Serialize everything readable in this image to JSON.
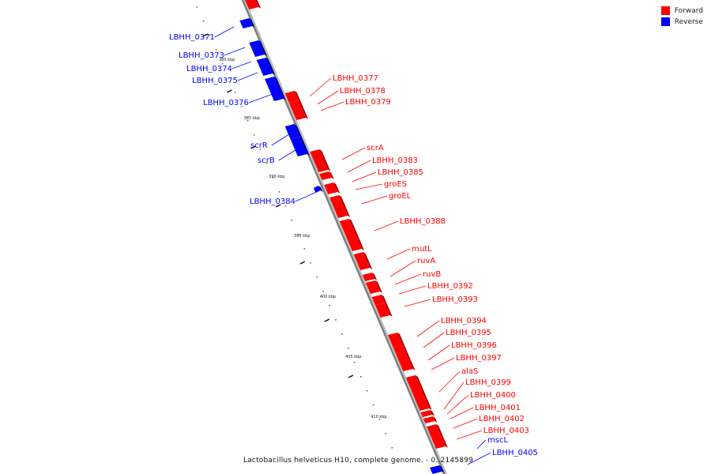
{
  "legend": {
    "forward_label": "Forward",
    "reverse_label": "Reverse",
    "forward_color": "#ff0000",
    "reverse_color": "#0000ff"
  },
  "caption": "Lactobacillus helveticus H10, complete genome. - 0..2145899",
  "ticks": [
    "380 kbp",
    "385 kbp",
    "390 kbp",
    "395 kbp",
    "400 kbp",
    "405 kbp",
    "410 kbp"
  ],
  "reverse_genes": [
    "LBHH_0371",
    "LBHH_0373",
    "LBHH_0374",
    "LBHH_0375",
    "LBHH_0376",
    "scrR",
    "scrB",
    "LBHH_0384",
    "mscL",
    "LBHH_0405"
  ],
  "forward_genes": [
    "LBHH_0377",
    "LBHH_0378",
    "LBHH_0379",
    "scrA",
    "LBHH_0383",
    "LBHH_0385",
    "groES",
    "groEL",
    "LBHH_0388",
    "mutL",
    "ruvA",
    "ruvB",
    "LBHH_0392",
    "LBHH_0393",
    "LBHH_0394",
    "LBHH_0395",
    "LBHH_0396",
    "LBHH_0397",
    "alaS",
    "LBHH_0399",
    "LBHH_0400",
    "LBHH_0401",
    "LBHH_0402",
    "LBHH_0403"
  ]
}
